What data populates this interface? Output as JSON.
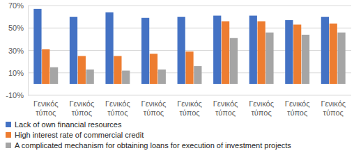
{
  "chart_data": {
    "type": "bar",
    "categories": [
      "Γενικός τύπος",
      "Γενικός τύπος",
      "Γενικός τύπος",
      "Γενικός τύπος",
      "Γενικός τύπος",
      "Γενικός τύπος",
      "Γενικός τύπος",
      "Γενικός τύπος",
      "Γενικός τύπος"
    ],
    "series": [
      {
        "name": "Lack of own financial resources",
        "color": "#4472c4",
        "values": [
          67,
          60,
          64,
          59,
          60,
          61,
          61,
          57,
          60
        ]
      },
      {
        "name": "High interest rate of commercial credit",
        "color": "#ed7d31",
        "values": [
          31,
          25,
          25,
          27,
          29,
          56,
          56,
          53,
          54
        ]
      },
      {
        "name": "A complicated mechanism for obtaining loans for execution of investment projects",
        "color": "#a5a5a5",
        "values": [
          15,
          13,
          12,
          13,
          16,
          41,
          46,
          44,
          46
        ]
      }
    ],
    "ylim": [
      -10,
      70
    ],
    "yticks": [
      {
        "value": -10,
        "label": "-10%"
      },
      {
        "value": 10,
        "label": "10%"
      },
      {
        "value": 30,
        "label": "30%"
      },
      {
        "value": 50,
        "label": "50%"
      },
      {
        "value": 70,
        "label": "70%"
      }
    ],
    "grid": true,
    "legend": "bottom"
  }
}
